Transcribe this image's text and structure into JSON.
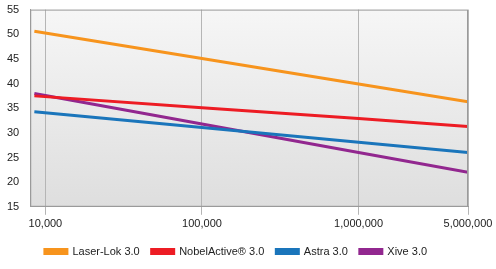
{
  "chart_data": {
    "type": "line",
    "x": [
      8500,
      100000,
      1000000,
      5000000
    ],
    "series": [
      {
        "name": "Laser-Lok 3.0",
        "color": "#f7941d",
        "values": [
          50.6,
          45.1,
          39.9,
          36.3
        ]
      },
      {
        "name": "NobelActive® 3.0",
        "color": "#ed1c24",
        "values": [
          37.5,
          35.1,
          32.9,
          31.3
        ]
      },
      {
        "name": "Astra 3.0",
        "color": "#1a75bb",
        "values": [
          34.3,
          31.1,
          28.1,
          26.0
        ]
      },
      {
        "name": "Xive 3.0",
        "color": "#92278f",
        "values": [
          38.0,
          31.8,
          26.0,
          22.0
        ]
      }
    ],
    "xlim": [
      8000,
      5000000
    ],
    "xticks": [
      {
        "value": 10000,
        "label": "10,000"
      },
      {
        "value": 100000,
        "label": "100,000"
      },
      {
        "value": 1000000,
        "label": "1,000,000"
      },
      {
        "value": 5000000,
        "label": "5,000,000"
      }
    ],
    "ylim": [
      15,
      55
    ],
    "yticks": [
      15,
      20,
      25,
      30,
      35,
      40,
      45,
      50,
      55
    ],
    "log": "x",
    "grid": true,
    "legend": "bottom"
  }
}
